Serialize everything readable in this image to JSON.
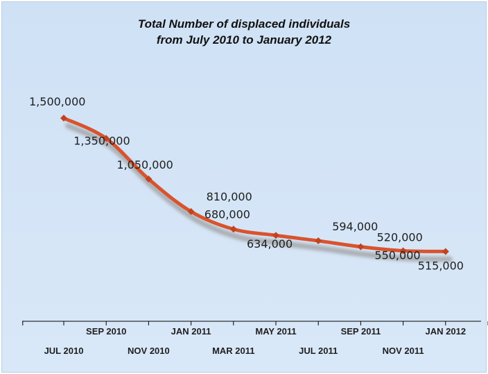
{
  "chart_data": {
    "type": "line",
    "title": "Total Number of displaced individuals",
    "subtitle": "from July 2010 to January 2012",
    "categories": [
      "JUL 2010",
      "SEP 2010",
      "NOV 2010",
      "JAN 2011",
      "MAR 2011",
      "MAY 2011",
      "JUL 2011",
      "SEP 2011",
      "NOV 2011",
      "JAN 2012"
    ],
    "series": [
      {
        "values": [
          1500000,
          1350000,
          1050000,
          810000,
          680000,
          634000,
          594000,
          550000,
          520000,
          515000
        ]
      }
    ],
    "data_labels": [
      "1,500,000",
      "1,350,000",
      "1,050,000",
      "810,000",
      "680,000",
      "634,000",
      "594,000",
      "550,000",
      "520,000",
      "515,000"
    ],
    "ylim": [
      0,
      2500000
    ],
    "grid": false,
    "legend": "none",
    "colors": {
      "line": "#d9532c",
      "marker": "#c04420",
      "shadow": "#9c9c9c",
      "background": "#d3e4f6"
    }
  }
}
